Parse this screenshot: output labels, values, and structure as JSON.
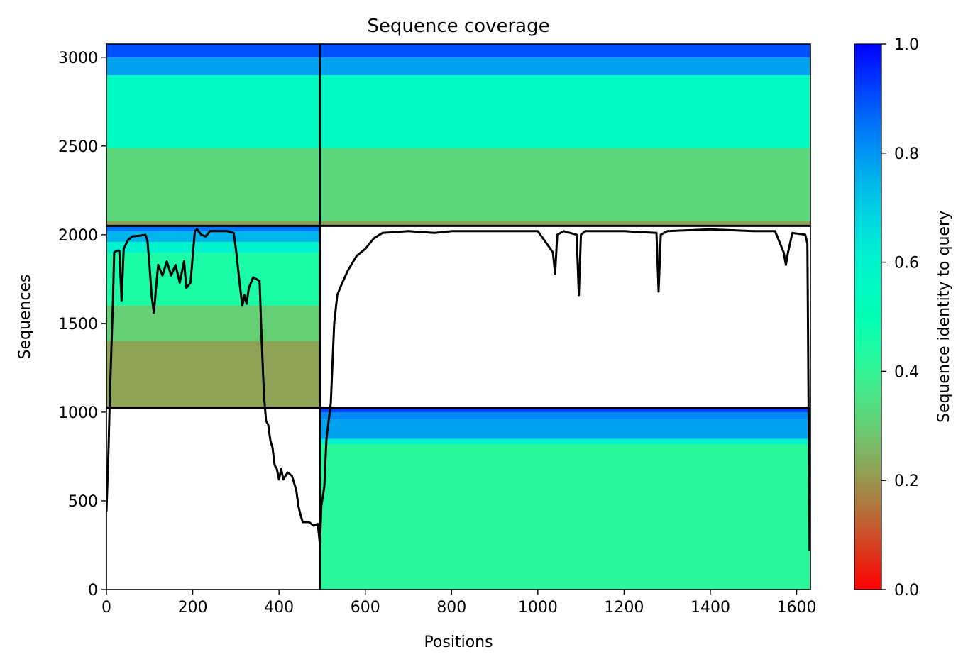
{
  "chart_data": {
    "type": "heatmap",
    "title": "Sequence coverage",
    "xlabel": "Positions",
    "ylabel": "Sequences",
    "xlim": [
      0,
      1632
    ],
    "ylim": [
      0,
      3075
    ],
    "xticks": [
      0,
      200,
      400,
      600,
      800,
      1000,
      1200,
      1400,
      1600
    ],
    "yticks": [
      0,
      500,
      1000,
      1500,
      2000,
      2500,
      3000
    ],
    "colorbar": {
      "label": "Sequence identity to query",
      "range": [
        0,
        1
      ],
      "ticks": [
        "0.0",
        "0.2",
        "0.4",
        "0.6",
        "0.8",
        "1.0"
      ],
      "colormap": "rainbow_r"
    },
    "grid": false,
    "chain_boundaries": {
      "positions": [
        495
      ],
      "sequences": [
        1025,
        2050
      ]
    },
    "blocks": [
      {
        "name": "rows 2050-3075, positions 0-495",
        "x_range": [
          0,
          495
        ],
        "y_range": [
          2050,
          3075
        ],
        "bands": [
          {
            "y": [
              2050,
              2075
            ],
            "identity": 0.22
          },
          {
            "y": [
              2075,
              2490
            ],
            "identity": 0.32
          },
          {
            "y": [
              2490,
              2900
            ],
            "identity": 0.55
          },
          {
            "y": [
              2900,
              3000
            ],
            "identity": 0.78
          },
          {
            "y": [
              3000,
              3075
            ],
            "identity": 0.9
          }
        ]
      },
      {
        "name": "rows 2050-3075, positions 495-1632",
        "x_range": [
          495,
          1632
        ],
        "y_range": [
          2050,
          3075
        ],
        "bands": [
          {
            "y": [
              2050,
              2075
            ],
            "identity": 0.22
          },
          {
            "y": [
              2075,
              2490
            ],
            "identity": 0.32
          },
          {
            "y": [
              2490,
              2900
            ],
            "identity": 0.55
          },
          {
            "y": [
              2900,
              3000
            ],
            "identity": 0.78
          },
          {
            "y": [
              3000,
              3075
            ],
            "identity": 0.9
          }
        ]
      },
      {
        "name": "rows 1025-2050, positions 0-495",
        "x_range": [
          0,
          495
        ],
        "y_range": [
          1025,
          2050
        ],
        "bands": [
          {
            "y": [
              1025,
              1400
            ],
            "identity": 0.22
          },
          {
            "y": [
              1400,
              1600
            ],
            "identity": 0.3
          },
          {
            "y": [
              1600,
              1900
            ],
            "identity": 0.45
          },
          {
            "y": [
              1900,
              1960
            ],
            "identity": 0.6
          },
          {
            "y": [
              1960,
              2020
            ],
            "identity": 0.75
          },
          {
            "y": [
              2020,
              2050
            ],
            "identity": 0.85
          }
        ]
      },
      {
        "name": "rows 0-1025, positions 495-1632",
        "x_range": [
          495,
          1632
        ],
        "y_range": [
          0,
          1025
        ],
        "bands": [
          {
            "y": [
              0,
              820
            ],
            "identity": 0.42
          },
          {
            "y": [
              820,
              850
            ],
            "identity": 0.6
          },
          {
            "y": [
              850,
              960
            ],
            "identity": 0.78
          },
          {
            "y": [
              960,
              1000
            ],
            "identity": 0.82
          },
          {
            "y": [
              1000,
              1025
            ],
            "identity": 0.92
          }
        ]
      }
    ],
    "coverage_line": [
      [
        0,
        440
      ],
      [
        5,
        800
      ],
      [
        8,
        1100
      ],
      [
        12,
        1400
      ],
      [
        15,
        1620
      ],
      [
        18,
        1900
      ],
      [
        25,
        1910
      ],
      [
        30,
        1910
      ],
      [
        35,
        1630
      ],
      [
        40,
        1920
      ],
      [
        50,
        1970
      ],
      [
        60,
        1990
      ],
      [
        80,
        1995
      ],
      [
        90,
        2000
      ],
      [
        95,
        1970
      ],
      [
        100,
        1820
      ],
      [
        105,
        1650
      ],
      [
        110,
        1560
      ],
      [
        115,
        1700
      ],
      [
        120,
        1830
      ],
      [
        130,
        1770
      ],
      [
        140,
        1850
      ],
      [
        150,
        1770
      ],
      [
        160,
        1830
      ],
      [
        170,
        1730
      ],
      [
        180,
        1850
      ],
      [
        185,
        1700
      ],
      [
        195,
        1730
      ],
      [
        200,
        1880
      ],
      [
        205,
        2020
      ],
      [
        210,
        2030
      ],
      [
        220,
        2000
      ],
      [
        230,
        1990
      ],
      [
        240,
        2020
      ],
      [
        260,
        2020
      ],
      [
        280,
        2020
      ],
      [
        295,
        2010
      ],
      [
        300,
        1920
      ],
      [
        310,
        1700
      ],
      [
        315,
        1600
      ],
      [
        320,
        1660
      ],
      [
        325,
        1610
      ],
      [
        330,
        1700
      ],
      [
        340,
        1760
      ],
      [
        355,
        1740
      ],
      [
        360,
        1400
      ],
      [
        365,
        1100
      ],
      [
        370,
        950
      ],
      [
        375,
        930
      ],
      [
        380,
        840
      ],
      [
        385,
        800
      ],
      [
        390,
        700
      ],
      [
        395,
        680
      ],
      [
        400,
        620
      ],
      [
        405,
        680
      ],
      [
        410,
        620
      ],
      [
        420,
        660
      ],
      [
        430,
        640
      ],
      [
        440,
        560
      ],
      [
        445,
        470
      ],
      [
        450,
        420
      ],
      [
        455,
        380
      ],
      [
        470,
        380
      ],
      [
        480,
        360
      ],
      [
        490,
        370
      ],
      [
        495,
        250
      ],
      [
        498,
        470
      ],
      [
        505,
        580
      ],
      [
        510,
        850
      ],
      [
        520,
        1050
      ],
      [
        528,
        1500
      ],
      [
        535,
        1660
      ],
      [
        545,
        1720
      ],
      [
        560,
        1800
      ],
      [
        580,
        1880
      ],
      [
        600,
        1920
      ],
      [
        620,
        1980
      ],
      [
        640,
        2010
      ],
      [
        700,
        2020
      ],
      [
        760,
        2010
      ],
      [
        800,
        2020
      ],
      [
        900,
        2020
      ],
      [
        1000,
        2020
      ],
      [
        1035,
        1900
      ],
      [
        1040,
        1780
      ],
      [
        1045,
        2000
      ],
      [
        1060,
        2020
      ],
      [
        1090,
        2000
      ],
      [
        1095,
        1660
      ],
      [
        1100,
        2000
      ],
      [
        1110,
        2020
      ],
      [
        1200,
        2020
      ],
      [
        1275,
        2010
      ],
      [
        1280,
        1680
      ],
      [
        1285,
        2000
      ],
      [
        1300,
        2020
      ],
      [
        1400,
        2030
      ],
      [
        1500,
        2020
      ],
      [
        1550,
        2020
      ],
      [
        1570,
        1900
      ],
      [
        1575,
        1830
      ],
      [
        1580,
        1900
      ],
      [
        1590,
        2010
      ],
      [
        1620,
        2000
      ],
      [
        1625,
        1950
      ],
      [
        1630,
        220
      ]
    ]
  }
}
